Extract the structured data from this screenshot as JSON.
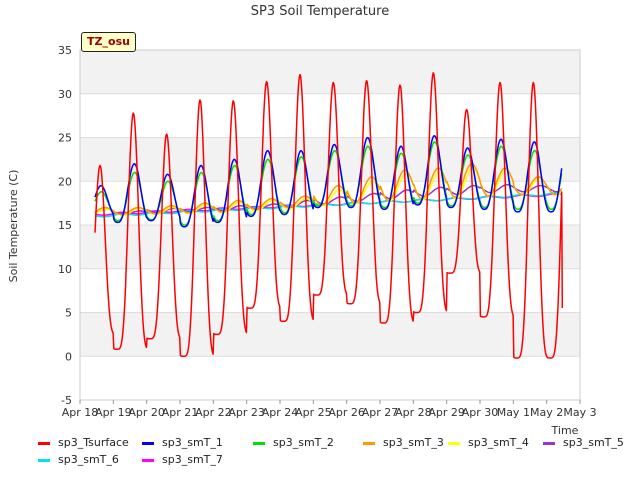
{
  "chart_data": {
    "type": "line",
    "title": "SP3 Soil Temperature",
    "xlabel": "Time",
    "ylabel": "Soil Temperature (C)",
    "ylim": [
      -5,
      35
    ],
    "yticks": [
      -5,
      0,
      5,
      10,
      15,
      20,
      25,
      30,
      35
    ],
    "xlim_days": [
      0,
      15
    ],
    "xtick_labels": [
      "Apr 18",
      "Apr 19",
      "Apr 20",
      "Apr 21",
      "Apr 22",
      "Apr 23",
      "Apr 24",
      "Apr 25",
      "Apr 26",
      "Apr 27",
      "Apr 28",
      "Apr 29",
      "Apr 30",
      "May 1",
      "May 2",
      "May 3"
    ],
    "annotation": "TZ_osu",
    "series": [
      {
        "name": "sp3_Tsurface",
        "color": "#ff0000",
        "daily_max": [
          21.8,
          27.8,
          25.4,
          29.3,
          29.2,
          31.4,
          32.2,
          31.3,
          31.5,
          31.0,
          32.4,
          28.2,
          31.3,
          31.3
        ],
        "daily_min": [
          2.5,
          0.8,
          2.0,
          0.0,
          2.5,
          5.5,
          4.0,
          7.0,
          6.0,
          3.8,
          5.0,
          9.5,
          4.5,
          -0.2
        ],
        "end_value": 5.5
      },
      {
        "name": "sp3_smT_1",
        "color": "#0000ff",
        "daily_max": [
          19.5,
          22.0,
          20.8,
          21.8,
          22.5,
          23.5,
          23.5,
          24.2,
          25.0,
          24.0,
          25.2,
          23.8,
          24.8,
          24.5
        ],
        "daily_min": [
          16.0,
          15.3,
          15.5,
          14.8,
          15.3,
          16.0,
          16.2,
          17.0,
          17.0,
          16.8,
          17.3,
          17.0,
          16.8,
          16.5
        ]
      },
      {
        "name": "sp3_smT_2",
        "color": "#00e000",
        "daily_max": [
          18.8,
          21.0,
          20.0,
          21.0,
          21.8,
          22.5,
          22.8,
          23.5,
          24.0,
          23.2,
          24.5,
          23.0,
          24.0,
          23.5
        ],
        "daily_min": [
          16.0,
          15.5,
          15.6,
          15.0,
          15.5,
          16.2,
          16.4,
          17.2,
          17.2,
          17.0,
          17.5,
          17.2,
          17.0,
          16.8
        ]
      },
      {
        "name": "sp3_smT_3",
        "color": "#ff9900",
        "daily_max": [
          17.0,
          17.0,
          17.2,
          17.5,
          17.8,
          18.0,
          18.3,
          19.5,
          20.5,
          21.3,
          21.5,
          22.0,
          21.5,
          20.5
        ],
        "daily_min": [
          16.2,
          16.2,
          16.3,
          16.4,
          16.5,
          16.8,
          17.0,
          17.3,
          17.5,
          17.8,
          18.0,
          18.2,
          18.3,
          18.5
        ]
      },
      {
        "name": "sp3_smT_4",
        "color": "#ffff00",
        "daily_max": [
          16.8,
          16.9,
          17.0,
          17.3,
          17.6,
          17.8,
          18.0,
          19.0,
          20.0,
          20.8,
          21.0,
          21.5,
          21.2,
          20.3
        ],
        "daily_min": [
          16.1,
          16.1,
          16.2,
          16.3,
          16.4,
          16.6,
          16.8,
          17.2,
          17.5,
          17.7,
          17.9,
          18.0,
          18.2,
          18.4
        ]
      },
      {
        "name": "sp3_smT_5",
        "color": "#9933cc",
        "daily_max": [
          16.8,
          16.6,
          16.9,
          17.0,
          17.2,
          17.4,
          17.8,
          18.2,
          18.6,
          19.0,
          19.3,
          19.5,
          19.6,
          19.5
        ],
        "daily_min": [
          16.3,
          16.3,
          16.4,
          16.5,
          16.6,
          16.8,
          17.0,
          17.4,
          17.7,
          18.0,
          18.3,
          18.5,
          18.7,
          18.8
        ]
      },
      {
        "name": "sp3_smT_6",
        "color": "#00e5e5",
        "start_value": 16.0,
        "end_value": 18.6
      },
      {
        "name": "sp3_smT_7",
        "color": "#ff00ff",
        "start_value": 16.2,
        "end_value": 18.5
      }
    ]
  }
}
